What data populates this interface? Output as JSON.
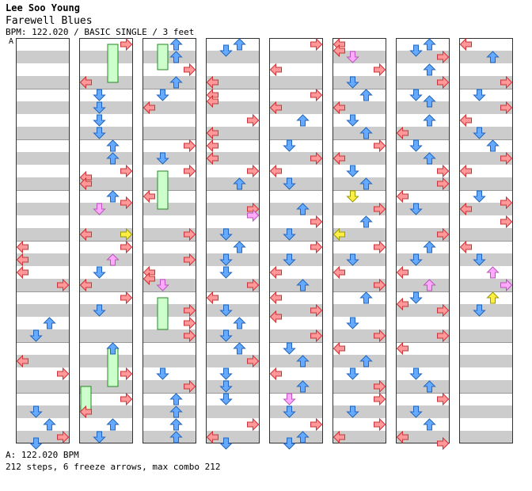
{
  "header": {
    "artist": "Lee Soo Young",
    "title": "Farewell Blues",
    "info": "BPM: 122.020 / BASIC SINGLE / 3 feet",
    "marker": "A"
  },
  "footer": {
    "bpm_line": "A: 122.020 BPM",
    "stats_line": "212 steps, 6 freeze arrows, max combo 212"
  },
  "colors": {
    "left_right": "#ff9999",
    "down_up": "#66aaff",
    "mine_pink": "#ffaaff",
    "shock_yellow": "#ffee44",
    "freeze": "#ccffcc",
    "stripe": "#cccccc"
  },
  "chart_data": {
    "type": "step-chart",
    "columns": 8,
    "beats_per_column": 32,
    "lanes": [
      "left",
      "down",
      "up",
      "right"
    ],
    "notes": [
      {
        "c": 0,
        "b": 16,
        "d": "L"
      },
      {
        "c": 0,
        "b": 17,
        "d": "L"
      },
      {
        "c": 0,
        "b": 18,
        "d": "L"
      },
      {
        "c": 0,
        "b": 19,
        "d": "R"
      },
      {
        "c": 0,
        "b": 22,
        "d": "U"
      },
      {
        "c": 0,
        "b": 23,
        "d": "D"
      },
      {
        "c": 0,
        "b": 25,
        "d": "L"
      },
      {
        "c": 0,
        "b": 26,
        "d": "R"
      },
      {
        "c": 0,
        "b": 29,
        "d": "D"
      },
      {
        "c": 0,
        "b": 30,
        "d": "U"
      },
      {
        "c": 0,
        "b": 31,
        "d": "R"
      },
      {
        "c": 0,
        "b": 31.5,
        "d": "D"
      },
      {
        "c": 1,
        "b": 0,
        "d": "R"
      },
      {
        "c": 1,
        "b": 3,
        "d": "L"
      },
      {
        "c": 1,
        "b": 4,
        "d": "D"
      },
      {
        "c": 1,
        "b": 5,
        "d": "D"
      },
      {
        "c": 1,
        "b": 6,
        "d": "D"
      },
      {
        "c": 1,
        "b": 7,
        "d": "D"
      },
      {
        "c": 1,
        "b": 8,
        "d": "U"
      },
      {
        "c": 1,
        "b": 9,
        "d": "U"
      },
      {
        "c": 1,
        "b": 10,
        "d": "R"
      },
      {
        "c": 1,
        "b": 10.5,
        "d": "L"
      },
      {
        "c": 1,
        "b": 11,
        "d": "L"
      },
      {
        "c": 1,
        "b": 12,
        "d": "U"
      },
      {
        "c": 1,
        "b": 12.5,
        "d": "R"
      },
      {
        "c": 1,
        "b": 13,
        "d": "D",
        "k": "mine"
      },
      {
        "c": 1,
        "b": 15,
        "d": "L"
      },
      {
        "c": 1,
        "b": 15,
        "d": "R",
        "k": "shock"
      },
      {
        "c": 1,
        "b": 16,
        "d": "R"
      },
      {
        "c": 1,
        "b": 17,
        "d": "U",
        "k": "mine"
      },
      {
        "c": 1,
        "b": 18,
        "d": "D"
      },
      {
        "c": 1,
        "b": 19,
        "d": "L"
      },
      {
        "c": 1,
        "b": 20,
        "d": "R"
      },
      {
        "c": 1,
        "b": 21,
        "d": "D"
      },
      {
        "c": 1,
        "b": 24,
        "d": "U"
      },
      {
        "c": 1,
        "b": 26,
        "d": "R"
      },
      {
        "c": 1,
        "b": 28,
        "d": "R"
      },
      {
        "c": 1,
        "b": 29,
        "d": "L"
      },
      {
        "c": 1,
        "b": 30,
        "d": "U"
      },
      {
        "c": 1,
        "b": 31,
        "d": "D"
      },
      {
        "c": 2,
        "b": 0,
        "d": "U"
      },
      {
        "c": 2,
        "b": 1,
        "d": "U"
      },
      {
        "c": 2,
        "b": 2,
        "d": "R"
      },
      {
        "c": 2,
        "b": 3,
        "d": "U"
      },
      {
        "c": 2,
        "b": 4,
        "d": "D"
      },
      {
        "c": 2,
        "b": 5,
        "d": "L"
      },
      {
        "c": 2,
        "b": 8,
        "d": "R"
      },
      {
        "c": 2,
        "b": 9,
        "d": "D"
      },
      {
        "c": 2,
        "b": 10,
        "d": "R"
      },
      {
        "c": 2,
        "b": 12,
        "d": "L"
      },
      {
        "c": 2,
        "b": 15,
        "d": "R"
      },
      {
        "c": 2,
        "b": 17,
        "d": "R"
      },
      {
        "c": 2,
        "b": 18,
        "d": "L"
      },
      {
        "c": 2,
        "b": 18.5,
        "d": "L"
      },
      {
        "c": 2,
        "b": 19,
        "d": "D",
        "k": "mine"
      },
      {
        "c": 2,
        "b": 21,
        "d": "R"
      },
      {
        "c": 2,
        "b": 22,
        "d": "R"
      },
      {
        "c": 2,
        "b": 23,
        "d": "R"
      },
      {
        "c": 2,
        "b": 26,
        "d": "D"
      },
      {
        "c": 2,
        "b": 27,
        "d": "R"
      },
      {
        "c": 2,
        "b": 28,
        "d": "U"
      },
      {
        "c": 2,
        "b": 29,
        "d": "U"
      },
      {
        "c": 2,
        "b": 30,
        "d": "U"
      },
      {
        "c": 2,
        "b": 31,
        "d": "U"
      },
      {
        "c": 3,
        "b": 0,
        "d": "U"
      },
      {
        "c": 3,
        "b": 0.5,
        "d": "D"
      },
      {
        "c": 3,
        "b": 3,
        "d": "L"
      },
      {
        "c": 3,
        "b": 4,
        "d": "L"
      },
      {
        "c": 3,
        "b": 4.5,
        "d": "L"
      },
      {
        "c": 3,
        "b": 6,
        "d": "R"
      },
      {
        "c": 3,
        "b": 7,
        "d": "L"
      },
      {
        "c": 3,
        "b": 8,
        "d": "L"
      },
      {
        "c": 3,
        "b": 9,
        "d": "L"
      },
      {
        "c": 3,
        "b": 10,
        "d": "R"
      },
      {
        "c": 3,
        "b": 11,
        "d": "U"
      },
      {
        "c": 3,
        "b": 13,
        "d": "R"
      },
      {
        "c": 3,
        "b": 13.5,
        "d": "R",
        "k": "mine"
      },
      {
        "c": 3,
        "b": 15,
        "d": "D"
      },
      {
        "c": 3,
        "b": 16,
        "d": "U"
      },
      {
        "c": 3,
        "b": 17,
        "d": "D"
      },
      {
        "c": 3,
        "b": 18,
        "d": "D"
      },
      {
        "c": 3,
        "b": 19,
        "d": "R"
      },
      {
        "c": 3,
        "b": 20,
        "d": "L"
      },
      {
        "c": 3,
        "b": 21,
        "d": "D"
      },
      {
        "c": 3,
        "b": 22,
        "d": "U"
      },
      {
        "c": 3,
        "b": 23,
        "d": "D"
      },
      {
        "c": 3,
        "b": 24,
        "d": "U"
      },
      {
        "c": 3,
        "b": 25,
        "d": "R"
      },
      {
        "c": 3,
        "b": 26,
        "d": "D"
      },
      {
        "c": 3,
        "b": 27,
        "d": "D"
      },
      {
        "c": 3,
        "b": 28,
        "d": "D"
      },
      {
        "c": 3,
        "b": 30,
        "d": "R"
      },
      {
        "c": 3,
        "b": 31,
        "d": "L"
      },
      {
        "c": 3,
        "b": 31.5,
        "d": "D"
      },
      {
        "c": 4,
        "b": 0,
        "d": "R"
      },
      {
        "c": 4,
        "b": 2,
        "d": "L"
      },
      {
        "c": 4,
        "b": 4,
        "d": "R"
      },
      {
        "c": 4,
        "b": 5,
        "d": "L"
      },
      {
        "c": 4,
        "b": 6,
        "d": "U"
      },
      {
        "c": 4,
        "b": 8,
        "d": "D"
      },
      {
        "c": 4,
        "b": 9,
        "d": "R"
      },
      {
        "c": 4,
        "b": 10,
        "d": "L"
      },
      {
        "c": 4,
        "b": 11,
        "d": "D"
      },
      {
        "c": 4,
        "b": 13,
        "d": "U"
      },
      {
        "c": 4,
        "b": 14,
        "d": "R"
      },
      {
        "c": 4,
        "b": 15,
        "d": "D"
      },
      {
        "c": 4,
        "b": 16,
        "d": "R"
      },
      {
        "c": 4,
        "b": 17,
        "d": "D"
      },
      {
        "c": 4,
        "b": 18,
        "d": "L"
      },
      {
        "c": 4,
        "b": 19,
        "d": "U"
      },
      {
        "c": 4,
        "b": 20,
        "d": "L"
      },
      {
        "c": 4,
        "b": 21,
        "d": "R"
      },
      {
        "c": 4,
        "b": 21.5,
        "d": "L"
      },
      {
        "c": 4,
        "b": 23,
        "d": "R"
      },
      {
        "c": 4,
        "b": 24,
        "d": "D"
      },
      {
        "c": 4,
        "b": 25,
        "d": "U"
      },
      {
        "c": 4,
        "b": 26,
        "d": "L"
      },
      {
        "c": 4,
        "b": 27,
        "d": "U"
      },
      {
        "c": 4,
        "b": 28,
        "d": "D",
        "k": "mine"
      },
      {
        "c": 4,
        "b": 29,
        "d": "D"
      },
      {
        "c": 4,
        "b": 30,
        "d": "R"
      },
      {
        "c": 4,
        "b": 31,
        "d": "U"
      },
      {
        "c": 4,
        "b": 31.5,
        "d": "D"
      },
      {
        "c": 5,
        "b": 0,
        "d": "L"
      },
      {
        "c": 5,
        "b": 0.5,
        "d": "L"
      },
      {
        "c": 5,
        "b": 1,
        "d": "D",
        "k": "mine"
      },
      {
        "c": 5,
        "b": 2,
        "d": "R"
      },
      {
        "c": 5,
        "b": 3,
        "d": "D"
      },
      {
        "c": 5,
        "b": 4,
        "d": "U"
      },
      {
        "c": 5,
        "b": 5,
        "d": "L"
      },
      {
        "c": 5,
        "b": 6,
        "d": "D"
      },
      {
        "c": 5,
        "b": 7,
        "d": "U"
      },
      {
        "c": 5,
        "b": 8,
        "d": "R"
      },
      {
        "c": 5,
        "b": 9,
        "d": "L"
      },
      {
        "c": 5,
        "b": 10,
        "d": "D"
      },
      {
        "c": 5,
        "b": 11,
        "d": "U"
      },
      {
        "c": 5,
        "b": 12,
        "d": "D",
        "k": "shock"
      },
      {
        "c": 5,
        "b": 13,
        "d": "R"
      },
      {
        "c": 5,
        "b": 14,
        "d": "U"
      },
      {
        "c": 5,
        "b": 15,
        "d": "L",
        "k": "shock"
      },
      {
        "c": 5,
        "b": 16,
        "d": "R"
      },
      {
        "c": 5,
        "b": 17,
        "d": "D"
      },
      {
        "c": 5,
        "b": 18,
        "d": "L"
      },
      {
        "c": 5,
        "b": 19,
        "d": "R"
      },
      {
        "c": 5,
        "b": 20,
        "d": "U"
      },
      {
        "c": 5,
        "b": 22,
        "d": "D"
      },
      {
        "c": 5,
        "b": 23,
        "d": "R"
      },
      {
        "c": 5,
        "b": 24,
        "d": "L"
      },
      {
        "c": 5,
        "b": 25,
        "d": "U"
      },
      {
        "c": 5,
        "b": 26,
        "d": "D"
      },
      {
        "c": 5,
        "b": 27,
        "d": "R"
      },
      {
        "c": 5,
        "b": 28,
        "d": "R"
      },
      {
        "c": 5,
        "b": 29,
        "d": "D"
      },
      {
        "c": 5,
        "b": 30,
        "d": "R"
      },
      {
        "c": 5,
        "b": 31,
        "d": "L"
      },
      {
        "c": 6,
        "b": 0,
        "d": "U"
      },
      {
        "c": 6,
        "b": 0.5,
        "d": "D"
      },
      {
        "c": 6,
        "b": 1,
        "d": "R"
      },
      {
        "c": 6,
        "b": 2,
        "d": "U"
      },
      {
        "c": 6,
        "b": 3,
        "d": "R"
      },
      {
        "c": 6,
        "b": 4,
        "d": "D"
      },
      {
        "c": 6,
        "b": 4.5,
        "d": "U"
      },
      {
        "c": 6,
        "b": 6,
        "d": "U"
      },
      {
        "c": 6,
        "b": 7,
        "d": "L"
      },
      {
        "c": 6,
        "b": 8,
        "d": "D"
      },
      {
        "c": 6,
        "b": 9,
        "d": "U"
      },
      {
        "c": 6,
        "b": 10,
        "d": "R"
      },
      {
        "c": 6,
        "b": 11,
        "d": "R"
      },
      {
        "c": 6,
        "b": 12,
        "d": "L"
      },
      {
        "c": 6,
        "b": 13,
        "d": "D"
      },
      {
        "c": 6,
        "b": 15,
        "d": "R"
      },
      {
        "c": 6,
        "b": 16,
        "d": "U"
      },
      {
        "c": 6,
        "b": 17,
        "d": "D"
      },
      {
        "c": 6,
        "b": 18,
        "d": "L"
      },
      {
        "c": 6,
        "b": 19,
        "d": "U",
        "k": "mine"
      },
      {
        "c": 6,
        "b": 20,
        "d": "D"
      },
      {
        "c": 6,
        "b": 20.5,
        "d": "L"
      },
      {
        "c": 6,
        "b": 21,
        "d": "R"
      },
      {
        "c": 6,
        "b": 23,
        "d": "R"
      },
      {
        "c": 6,
        "b": 24,
        "d": "L"
      },
      {
        "c": 6,
        "b": 26,
        "d": "D"
      },
      {
        "c": 6,
        "b": 27,
        "d": "U"
      },
      {
        "c": 6,
        "b": 28,
        "d": "R"
      },
      {
        "c": 6,
        "b": 29,
        "d": "D"
      },
      {
        "c": 6,
        "b": 30,
        "d": "U"
      },
      {
        "c": 6,
        "b": 31,
        "d": "L"
      },
      {
        "c": 6,
        "b": 31.5,
        "d": "R"
      },
      {
        "c": 7,
        "b": 0,
        "d": "L"
      },
      {
        "c": 7,
        "b": 1,
        "d": "U"
      },
      {
        "c": 7,
        "b": 3,
        "d": "R"
      },
      {
        "c": 7,
        "b": 4,
        "d": "D"
      },
      {
        "c": 7,
        "b": 5,
        "d": "R"
      },
      {
        "c": 7,
        "b": 6,
        "d": "L"
      },
      {
        "c": 7,
        "b": 7,
        "d": "D"
      },
      {
        "c": 7,
        "b": 8,
        "d": "U"
      },
      {
        "c": 7,
        "b": 9,
        "d": "R"
      },
      {
        "c": 7,
        "b": 10,
        "d": "L"
      },
      {
        "c": 7,
        "b": 12,
        "d": "D"
      },
      {
        "c": 7,
        "b": 12.5,
        "d": "R"
      },
      {
        "c": 7,
        "b": 13,
        "d": "L"
      },
      {
        "c": 7,
        "b": 14,
        "d": "R"
      },
      {
        "c": 7,
        "b": 16,
        "d": "L"
      },
      {
        "c": 7,
        "b": 17,
        "d": "D"
      },
      {
        "c": 7,
        "b": 18,
        "d": "U",
        "k": "mine"
      },
      {
        "c": 7,
        "b": 19,
        "d": "R",
        "k": "mine"
      },
      {
        "c": 7,
        "b": 20,
        "d": "U",
        "k": "shock"
      },
      {
        "c": 7,
        "b": 21,
        "d": "D"
      }
    ],
    "freezes": [
      {
        "c": 1,
        "lane": "up",
        "start": 0,
        "end": 3
      },
      {
        "c": 2,
        "lane": "down",
        "start": 0,
        "end": 2
      },
      {
        "c": 2,
        "lane": "down",
        "start": 10,
        "end": 13
      },
      {
        "c": 2,
        "lane": "down",
        "start": 20,
        "end": 22.5
      },
      {
        "c": 1,
        "lane": "up",
        "start": 24,
        "end": 27
      },
      {
        "c": 1,
        "lane": "left",
        "start": 27,
        "end": 29
      }
    ]
  }
}
